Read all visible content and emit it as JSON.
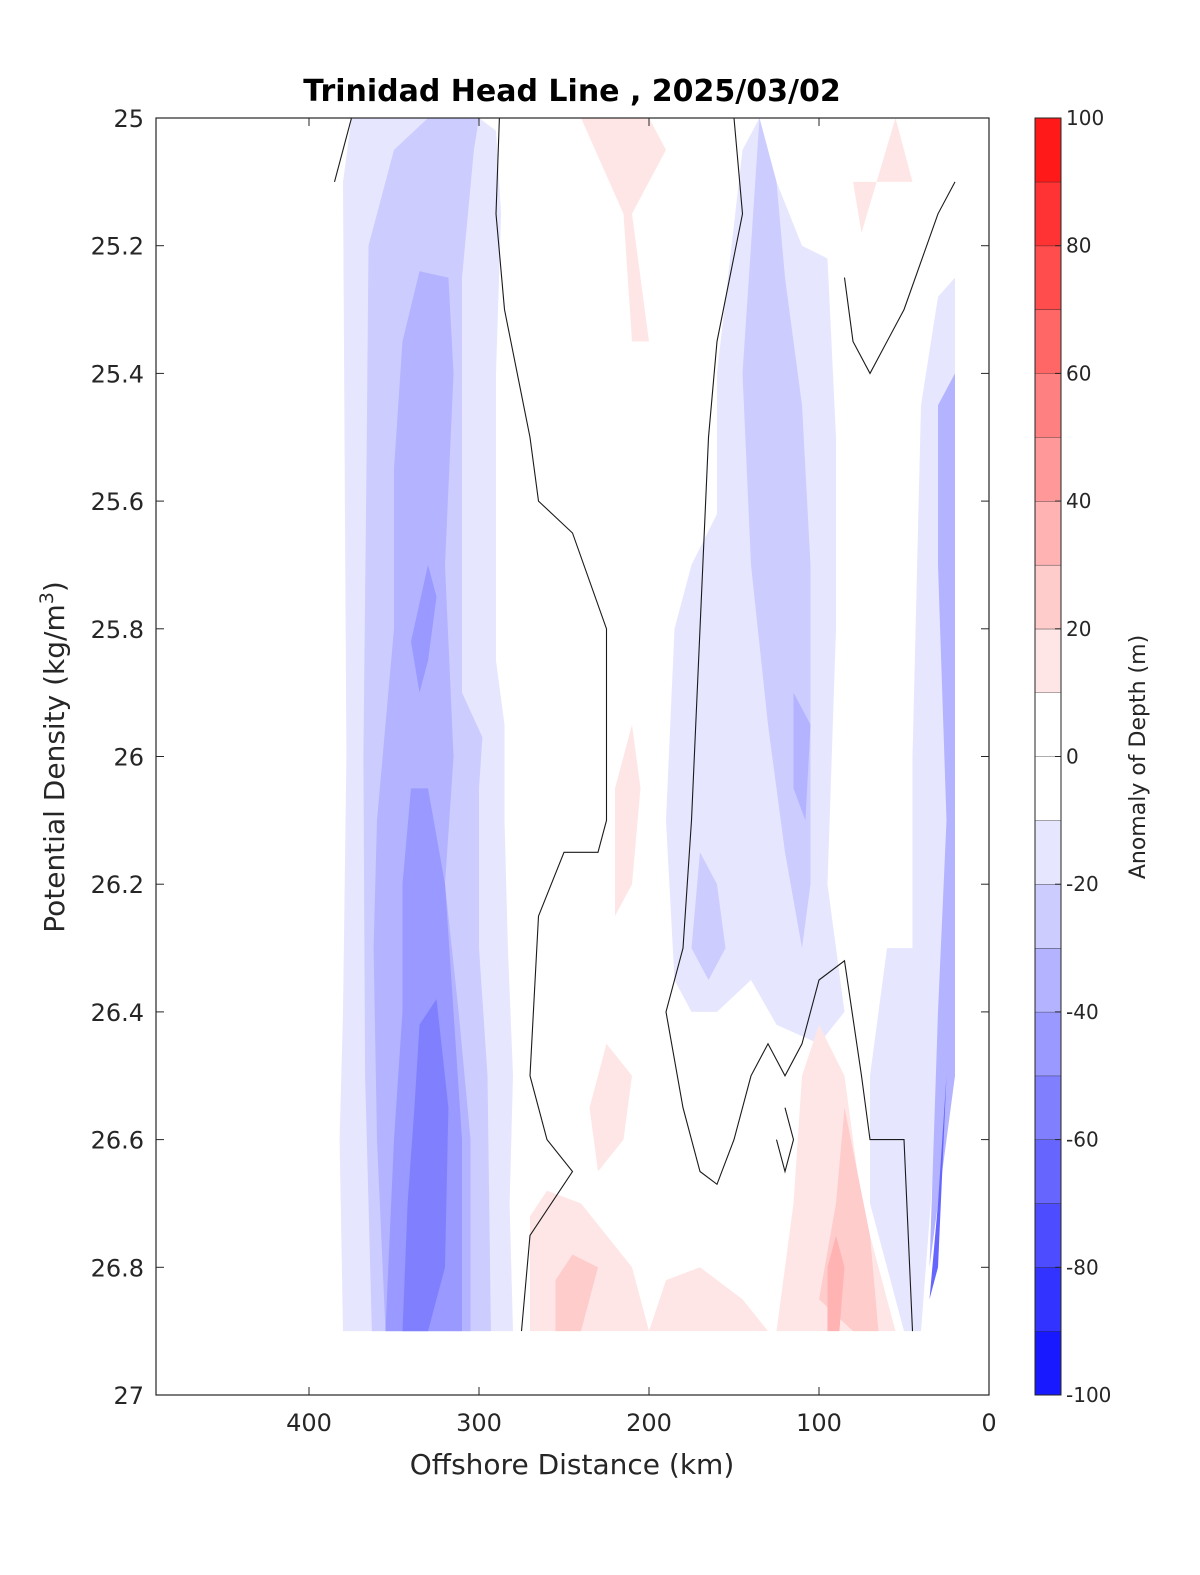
{
  "chart_data": {
    "type": "contour",
    "title": "Trinidad Head Line , 2025/03/02",
    "xlabel": "Offshore Distance (km)",
    "ylabel": "Potential Density (kg/m",
    "ylabel_superscript": "3",
    "ylabel_suffix": ")",
    "x_axis_reversed": true,
    "y_axis_reversed": true,
    "xlim": [
      0,
      490
    ],
    "ylim": [
      25,
      27
    ],
    "xticks": [
      400,
      300,
      200,
      100,
      0
    ],
    "xtick_labels": [
      "400",
      "300",
      "200",
      "100",
      "0"
    ],
    "yticks": [
      25,
      25.2,
      25.4,
      25.6,
      25.8,
      26,
      26.2,
      26.4,
      26.6,
      26.8,
      27
    ],
    "ytick_labels": [
      "25",
      "25.2",
      "25.4",
      "25.6",
      "25.8",
      "26",
      "26.2",
      "26.4",
      "26.6",
      "26.8",
      "27"
    ],
    "data_extent": {
      "x": [
        20,
        380
      ],
      "y": [
        25,
        26.9
      ]
    },
    "colorbar": {
      "label": "Anomaly of Depth (m)",
      "range": [
        -100,
        100
      ],
      "level_step": 10,
      "ticks": [
        100,
        80,
        60,
        40,
        20,
        0,
        -20,
        -40,
        -60,
        -80,
        -100
      ],
      "tick_labels": [
        "100",
        "80",
        "60",
        "40",
        "20",
        "0",
        "-20",
        "-40",
        "-60",
        "-80",
        "-100"
      ],
      "negative_color": "#0000ff",
      "positive_color": "#ff0000",
      "zero_color": "#ffffff"
    },
    "features": [
      {
        "kind": "negative",
        "level": -10,
        "points": [
          [
            380,
            25.1
          ],
          [
            375,
            25
          ],
          [
            300,
            25
          ],
          [
            290,
            25.02
          ],
          [
            287,
            25.15
          ],
          [
            290,
            25.4
          ],
          [
            290,
            25.7
          ],
          [
            290,
            25.85
          ],
          [
            285,
            25.95
          ],
          [
            285,
            26.1
          ],
          [
            283,
            26.3
          ],
          [
            280,
            26.5
          ],
          [
            282,
            26.7
          ],
          [
            280,
            26.9
          ],
          [
            380,
            26.9
          ],
          [
            382,
            26.6
          ],
          [
            380,
            26.4
          ],
          [
            378,
            26
          ]
        ]
      },
      {
        "kind": "negative",
        "level": -20,
        "points": [
          [
            365,
            25.2
          ],
          [
            350,
            25.05
          ],
          [
            330,
            25
          ],
          [
            300,
            25
          ],
          [
            303,
            25.05
          ],
          [
            310,
            25.25
          ],
          [
            310,
            25.5
          ],
          [
            310,
            25.9
          ],
          [
            298,
            25.97
          ],
          [
            300,
            26.05
          ],
          [
            300,
            26.3
          ],
          [
            295,
            26.5
          ],
          [
            293,
            26.9
          ],
          [
            363,
            26.9
          ],
          [
            367,
            26.5
          ],
          [
            368,
            26
          ],
          [
            366,
            25.5
          ]
        ]
      },
      {
        "kind": "negative",
        "level": -30,
        "points": [
          [
            345,
            25.35
          ],
          [
            335,
            25.24
          ],
          [
            318,
            25.25
          ],
          [
            315,
            25.4
          ],
          [
            320,
            25.7
          ],
          [
            315,
            26
          ],
          [
            320,
            26.2
          ],
          [
            312,
            26.4
          ],
          [
            305,
            26.6
          ],
          [
            305,
            26.9
          ],
          [
            355,
            26.9
          ],
          [
            360,
            26.6
          ],
          [
            362,
            26.3
          ],
          [
            360,
            26.1
          ],
          [
            350,
            25.8
          ],
          [
            350,
            25.55
          ]
        ]
      },
      {
        "kind": "negative",
        "level": -40,
        "points": [
          [
            335,
            25.76
          ],
          [
            330,
            25.7
          ],
          [
            325,
            25.75
          ],
          [
            330,
            25.85
          ],
          [
            335,
            25.9
          ],
          [
            340,
            25.82
          ]
        ]
      },
      {
        "kind": "negative",
        "level": -40,
        "points": [
          [
            340,
            26.05
          ],
          [
            330,
            26.05
          ],
          [
            320,
            26.2
          ],
          [
            315,
            26.4
          ],
          [
            310,
            26.6
          ],
          [
            310,
            26.9
          ],
          [
            355,
            26.9
          ],
          [
            350,
            26.6
          ],
          [
            345,
            26.4
          ],
          [
            345,
            26.2
          ]
        ]
      },
      {
        "kind": "negative",
        "level": -50,
        "points": [
          [
            335,
            26.42
          ],
          [
            325,
            26.38
          ],
          [
            318,
            26.55
          ],
          [
            320,
            26.8
          ],
          [
            330,
            26.9
          ],
          [
            345,
            26.9
          ],
          [
            342,
            26.7
          ],
          [
            338,
            26.55
          ]
        ]
      },
      {
        "kind": "negative",
        "level": -20,
        "points": [
          [
            310,
            25
          ],
          [
            325,
            25.05
          ],
          [
            305,
            25.05
          ]
        ]
      },
      {
        "kind": "negative",
        "level": -10,
        "points": [
          [
            145,
            25.05
          ],
          [
            135,
            25
          ],
          [
            125,
            25.1
          ],
          [
            110,
            25.2
          ],
          [
            95,
            25.22
          ],
          [
            90,
            25.5
          ],
          [
            90,
            25.8
          ],
          [
            95,
            26.2
          ],
          [
            85,
            26.4
          ],
          [
            100,
            26.45
          ],
          [
            125,
            26.42
          ],
          [
            140,
            26.35
          ],
          [
            160,
            26.4
          ],
          [
            175,
            26.4
          ],
          [
            185,
            26.35
          ],
          [
            190,
            26.1
          ],
          [
            185,
            25.8
          ],
          [
            175,
            25.7
          ],
          [
            160,
            25.62
          ],
          [
            160,
            25.4
          ]
        ]
      },
      {
        "kind": "negative",
        "level": -20,
        "points": [
          [
            135,
            25
          ],
          [
            125,
            25.1
          ],
          [
            120,
            25.25
          ],
          [
            110,
            25.45
          ],
          [
            105,
            25.7
          ],
          [
            105,
            26.2
          ],
          [
            110,
            26.3
          ],
          [
            120,
            26.15
          ],
          [
            130,
            25.95
          ],
          [
            140,
            25.7
          ],
          [
            145,
            25.4
          ],
          [
            140,
            25.2
          ]
        ]
      },
      {
        "kind": "negative",
        "level": -30,
        "points": [
          [
            115,
            25.9
          ],
          [
            105,
            25.95
          ],
          [
            108,
            26.1
          ],
          [
            115,
            26.05
          ]
        ]
      },
      {
        "kind": "negative",
        "level": -20,
        "points": [
          [
            170,
            26.15
          ],
          [
            160,
            26.2
          ],
          [
            155,
            26.3
          ],
          [
            165,
            26.35
          ],
          [
            175,
            26.3
          ]
        ]
      },
      {
        "kind": "negative",
        "level": -10,
        "points": [
          [
            20,
            25.25
          ],
          [
            30,
            25.28
          ],
          [
            40,
            25.45
          ],
          [
            45,
            26
          ],
          [
            45,
            26.3
          ],
          [
            60,
            26.3
          ],
          [
            70,
            26.5
          ],
          [
            70,
            26.7
          ],
          [
            50,
            26.9
          ],
          [
            40,
            26.9
          ],
          [
            20,
            26.2
          ]
        ]
      },
      {
        "kind": "negative",
        "level": -30,
        "points": [
          [
            20,
            25.4
          ],
          [
            30,
            25.45
          ],
          [
            30,
            25.7
          ],
          [
            25,
            26.1
          ],
          [
            30,
            26.4
          ],
          [
            35,
            26.8
          ],
          [
            40,
            26.9
          ],
          [
            20,
            26.5
          ]
        ]
      },
      {
        "kind": "negative",
        "level": -60,
        "points": [
          [
            25,
            26.5
          ],
          [
            30,
            26.7
          ],
          [
            35,
            26.85
          ],
          [
            30,
            26.8
          ]
        ]
      },
      {
        "kind": "positive",
        "level": 10,
        "points": [
          [
            240,
            25
          ],
          [
            200,
            25
          ],
          [
            190,
            25.05
          ],
          [
            210,
            25.15
          ],
          [
            200,
            25.35
          ],
          [
            210,
            25.35
          ],
          [
            215,
            25.15
          ]
        ]
      },
      {
        "kind": "positive",
        "level": 10,
        "points": [
          [
            80,
            25.1
          ],
          [
            45,
            25.1
          ],
          [
            55,
            25.0
          ],
          [
            75,
            25.18
          ]
        ]
      },
      {
        "kind": "positive",
        "level": 10,
        "points": [
          [
            210,
            25.95
          ],
          [
            205,
            26.05
          ],
          [
            210,
            26.2
          ],
          [
            220,
            26.25
          ],
          [
            220,
            26.05
          ]
        ]
      },
      {
        "kind": "positive",
        "level": 10,
        "points": [
          [
            225,
            26.45
          ],
          [
            235,
            26.55
          ],
          [
            230,
            26.65
          ],
          [
            215,
            26.6
          ],
          [
            210,
            26.5
          ]
        ]
      },
      {
        "kind": "positive",
        "level": 10,
        "points": [
          [
            260,
            26.68
          ],
          [
            240,
            26.7
          ],
          [
            210,
            26.8
          ],
          [
            200,
            26.9
          ],
          [
            270,
            26.9
          ],
          [
            270,
            26.72
          ]
        ]
      },
      {
        "kind": "positive",
        "level": 10,
        "points": [
          [
            170,
            26.8
          ],
          [
            145,
            26.85
          ],
          [
            130,
            26.9
          ],
          [
            200,
            26.9
          ],
          [
            190,
            26.82
          ]
        ]
      },
      {
        "kind": "positive",
        "level": 10,
        "points": [
          [
            100,
            26.42
          ],
          [
            85,
            26.5
          ],
          [
            75,
            26.7
          ],
          [
            55,
            26.9
          ],
          [
            125,
            26.9
          ],
          [
            115,
            26.7
          ],
          [
            110,
            26.5
          ]
        ]
      },
      {
        "kind": "positive",
        "level": 20,
        "points": [
          [
            85,
            26.55
          ],
          [
            90,
            26.7
          ],
          [
            100,
            26.85
          ],
          [
            80,
            26.9
          ],
          [
            65,
            26.9
          ],
          [
            70,
            26.75
          ]
        ]
      },
      {
        "kind": "positive",
        "level": 20,
        "points": [
          [
            245,
            26.78
          ],
          [
            230,
            26.8
          ],
          [
            240,
            26.9
          ],
          [
            255,
            26.9
          ],
          [
            255,
            26.82
          ]
        ]
      },
      {
        "kind": "positive",
        "level": 30,
        "points": [
          [
            90,
            26.75
          ],
          [
            85,
            26.8
          ],
          [
            88,
            26.9
          ],
          [
            95,
            26.9
          ],
          [
            95,
            26.8
          ]
        ]
      }
    ],
    "zero_contours": [
      [
        [
          385,
          25.1
        ],
        [
          375,
          25
        ]
      ],
      [
        [
          288,
          25
        ],
        [
          290,
          25.15
        ],
        [
          285,
          25.3
        ],
        [
          270,
          25.5
        ],
        [
          265,
          25.6
        ],
        [
          245,
          25.65
        ],
        [
          225,
          25.8
        ],
        [
          225,
          26.1
        ],
        [
          230,
          26.15
        ],
        [
          250,
          26.15
        ],
        [
          265,
          26.25
        ],
        [
          270,
          26.5
        ],
        [
          260,
          26.6
        ],
        [
          245,
          26.65
        ],
        [
          270,
          26.75
        ],
        [
          275,
          26.9
        ]
      ],
      [
        [
          150,
          25
        ],
        [
          145,
          25.15
        ],
        [
          160,
          25.35
        ],
        [
          165,
          25.5
        ],
        [
          170,
          25.8
        ],
        [
          175,
          26.1
        ],
        [
          180,
          26.3
        ],
        [
          190,
          26.4
        ],
        [
          180,
          26.55
        ],
        [
          170,
          26.65
        ],
        [
          160,
          26.67
        ],
        [
          150,
          26.6
        ],
        [
          140,
          26.5
        ],
        [
          130,
          26.45
        ],
        [
          120,
          26.5
        ],
        [
          110,
          26.45
        ],
        [
          100,
          26.35
        ],
        [
          85,
          26.32
        ],
        [
          75,
          26.5
        ],
        [
          70,
          26.6
        ],
        [
          50,
          26.6
        ],
        [
          45,
          26.9
        ]
      ],
      [
        [
          20,
          25.1
        ],
        [
          30,
          25.15
        ],
        [
          50,
          25.3
        ],
        [
          70,
          25.4
        ],
        [
          80,
          25.35
        ],
        [
          85,
          25.25
        ]
      ],
      [
        [
          120,
          26.55
        ],
        [
          115,
          26.6
        ],
        [
          120,
          26.65
        ],
        [
          125,
          26.6
        ]
      ]
    ]
  }
}
